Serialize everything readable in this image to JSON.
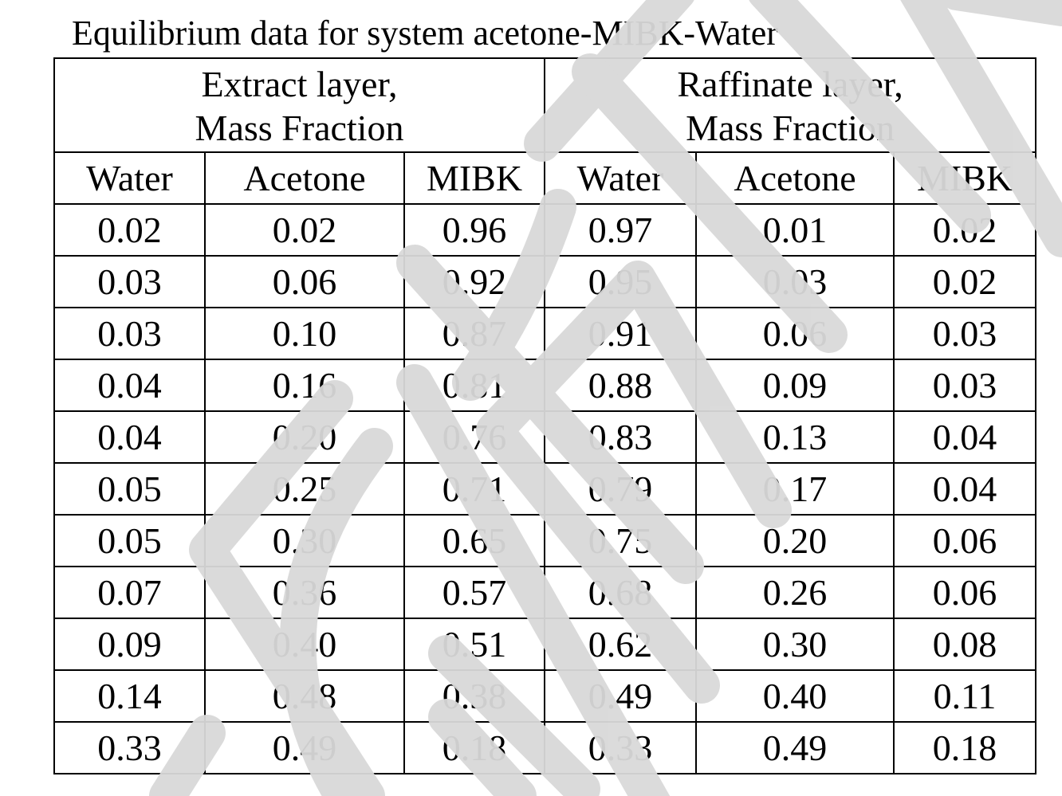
{
  "document": {
    "title": "Equilibrium data for system acetone-MIBK-Water",
    "watermark_color": "#d9d9d9"
  },
  "table": {
    "groups": [
      {
        "line1": "Extract layer,",
        "line2": "Mass Fraction"
      },
      {
        "line1": "Raffinate layer,",
        "line2": "Mass Fraction"
      }
    ],
    "columns": [
      "Water",
      "Acetone",
      "MIBK",
      "Water",
      "Acetone",
      "MIBK"
    ],
    "rows": [
      [
        "0.02",
        "0.02",
        "0.96",
        "0.97",
        "0.01",
        "0.02"
      ],
      [
        "0.03",
        "0.06",
        "0.92",
        "0.95",
        "0.03",
        "0.02"
      ],
      [
        "0.03",
        "0.10",
        "0.87",
        "0.91",
        "0.06",
        "0.03"
      ],
      [
        "0.04",
        "0.16",
        "0.81",
        "0.88",
        "0.09",
        "0.03"
      ],
      [
        "0.04",
        "0.20",
        "0.76",
        "0.83",
        "0.13",
        "0.04"
      ],
      [
        "0.05",
        "0.25",
        "0.71",
        "0.79",
        "0.17",
        "0.04"
      ],
      [
        "0.05",
        "0.30",
        "0.65",
        "0.75",
        "0.20",
        "0.06"
      ],
      [
        "0.07",
        "0.36",
        "0.57",
        "0.68",
        "0.26",
        "0.06"
      ],
      [
        "0.09",
        "0.40",
        "0.51",
        "0.62",
        "0.30",
        "0.08"
      ],
      [
        "0.14",
        "0.48",
        "0.38",
        "0.49",
        "0.40",
        "0.11"
      ],
      [
        "0.33",
        "0.49",
        "0.18",
        "0.33",
        "0.49",
        "0.18"
      ]
    ]
  }
}
